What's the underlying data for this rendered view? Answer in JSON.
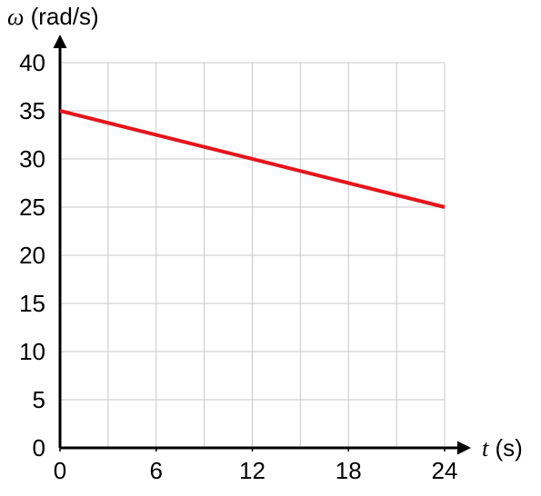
{
  "chart_data": {
    "type": "line",
    "xlabel": {
      "symbol": "t",
      "unit": " (s)"
    },
    "ylabel": {
      "symbol": "ω",
      "unit": " (rad/s)"
    },
    "xlim": [
      0,
      24
    ],
    "ylim": [
      0,
      40
    ],
    "x_ticks": [
      0,
      6,
      12,
      18,
      24
    ],
    "y_ticks": [
      0,
      5,
      10,
      15,
      20,
      25,
      30,
      35,
      40
    ],
    "x_grid_step": 3,
    "y_grid_step": 5,
    "grid": true,
    "series": [
      {
        "x": [
          0,
          24
        ],
        "y": [
          35,
          25
        ],
        "color": "#e8141b"
      }
    ]
  },
  "colors": {
    "grid": "#c8c8c8",
    "axis": "#000000",
    "line": "#e8141b"
  }
}
